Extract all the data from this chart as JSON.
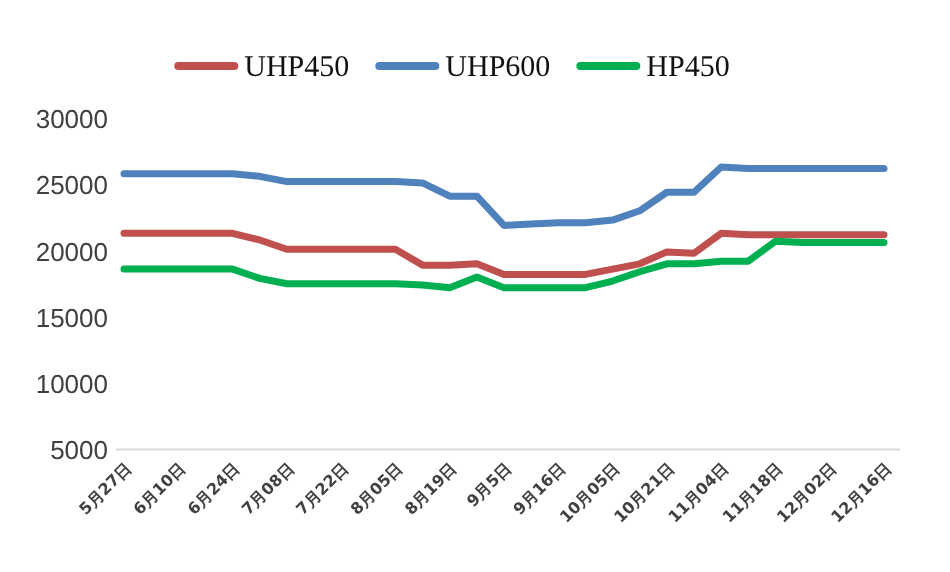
{
  "chart_data": {
    "type": "line",
    "categories": [
      "5月27日",
      null,
      "6月10日",
      null,
      "6月24日",
      null,
      "7月08日",
      null,
      "7月22日",
      null,
      "8月05日",
      null,
      "8月19日",
      null,
      "9月5日",
      null,
      "9月16日",
      null,
      "10月05日",
      null,
      "10月21日",
      null,
      "11月04日",
      null,
      "11月18日",
      null,
      "12月02日",
      null,
      "12月16日"
    ],
    "series": [
      {
        "name": "UHP450",
        "color": "#c0504d",
        "values": [
          21300,
          21300,
          21300,
          21300,
          21300,
          20800,
          20100,
          20100,
          20100,
          20100,
          20100,
          18900,
          18900,
          19000,
          18200,
          18200,
          18200,
          18200,
          18600,
          19000,
          19900,
          19800,
          21300,
          21200,
          21200,
          21200,
          21200,
          21200,
          21200
        ]
      },
      {
        "name": "UHP600",
        "color": "#4f81bd",
        "values": [
          25800,
          25800,
          25800,
          25800,
          25800,
          25600,
          25200,
          25200,
          25200,
          25200,
          25200,
          25100,
          24100,
          24100,
          21900,
          22000,
          22100,
          22100,
          22300,
          23000,
          24400,
          24400,
          26300,
          26200,
          26200,
          26200,
          26200,
          26200,
          26200
        ]
      },
      {
        "name": "HP450",
        "color": "#00b050",
        "values": [
          18600,
          18600,
          18600,
          18600,
          18600,
          17900,
          17500,
          17500,
          17500,
          17500,
          17500,
          17400,
          17200,
          18000,
          17200,
          17200,
          17200,
          17200,
          17700,
          18400,
          19000,
          19000,
          19200,
          19200,
          20700,
          20600,
          20600,
          20600,
          20600
        ]
      }
    ],
    "ylim": [
      5000,
      30000
    ],
    "yticks": [
      5000,
      10000,
      15000,
      20000,
      25000,
      30000
    ],
    "legend": "top"
  }
}
